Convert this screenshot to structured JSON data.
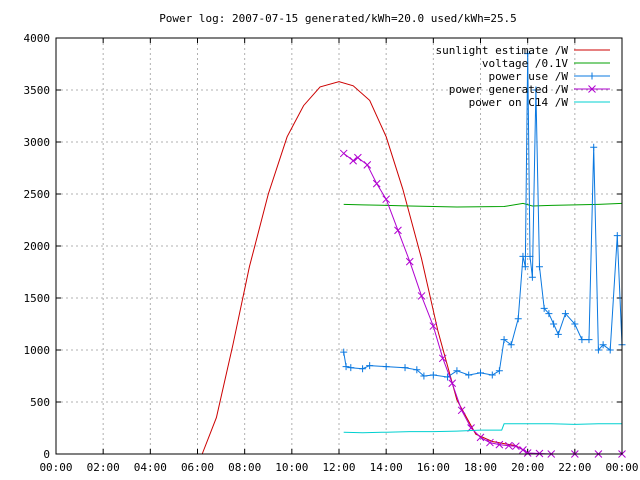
{
  "chart_data": {
    "type": "line",
    "title": "Power log: 2007-07-15 generated/kWh=20.0 used/kWh=25.5",
    "xlabel": "",
    "ylabel": "",
    "ylim": [
      0,
      4000
    ],
    "xlim": [
      0,
      24
    ],
    "grid": true,
    "legend_position": "top-right",
    "y_ticks": [
      "0",
      "500",
      "1000",
      "1500",
      "2000",
      "2500",
      "3000",
      "3500",
      "4000"
    ],
    "x_ticks": [
      "00:00",
      "02:00",
      "04:00",
      "06:00",
      "08:00",
      "10:00",
      "12:00",
      "14:00",
      "16:00",
      "18:00",
      "20:00",
      "22:00",
      "00:00"
    ],
    "series": [
      {
        "name": "sunlight estimate /W",
        "color": "#cc0000",
        "marker": "none",
        "x": [
          6.2,
          6.8,
          7.5,
          8.2,
          9.0,
          9.8,
          10.5,
          11.2,
          12.0,
          12.6,
          13.3,
          14.0,
          14.7,
          15.5,
          16.2,
          17.0,
          17.8,
          18.5,
          19.5,
          20.1
        ],
        "y": [
          0,
          350,
          1050,
          1800,
          2500,
          3050,
          3350,
          3530,
          3580,
          3540,
          3400,
          3050,
          2550,
          1880,
          1180,
          520,
          190,
          120,
          80,
          0
        ]
      },
      {
        "name": "voltage /0.1V",
        "color": "#00a000",
        "marker": "none",
        "x": [
          12.2,
          13.0,
          14.0,
          15.0,
          16.0,
          17.0,
          18.0,
          19.0,
          19.8,
          20.2,
          21.0,
          22.0,
          23.0,
          24.0
        ],
        "y": [
          2400,
          2395,
          2390,
          2385,
          2380,
          2375,
          2378,
          2380,
          2410,
          2385,
          2390,
          2395,
          2400,
          2410
        ]
      },
      {
        "name": "power use /W",
        "color": "#0a78e0",
        "marker": "plus",
        "x": [
          12.2,
          12.3,
          12.5,
          13.0,
          13.3,
          14.0,
          14.8,
          15.3,
          15.6,
          16.0,
          16.6,
          17.0,
          17.5,
          18.0,
          18.5,
          18.8,
          19.0,
          19.3,
          19.6,
          19.8,
          19.9,
          20.0,
          20.1,
          20.2,
          20.35,
          20.5,
          20.7,
          20.9,
          21.1,
          21.3,
          21.6,
          22.0,
          22.3,
          22.6,
          22.8,
          23.0,
          23.2,
          23.5,
          23.8,
          24.0
        ],
        "y": [
          980,
          840,
          830,
          820,
          850,
          840,
          830,
          810,
          750,
          760,
          740,
          800,
          760,
          780,
          760,
          800,
          1100,
          1050,
          1300,
          1900,
          1800,
          3850,
          1900,
          1700,
          3500,
          1800,
          1400,
          1350,
          1250,
          1150,
          1350,
          1250,
          1100,
          1100,
          2950,
          1000,
          1050,
          1000,
          2100,
          1050
        ]
      },
      {
        "name": "power generated /W",
        "color": "#b000d0",
        "marker": "cross",
        "x": [
          12.2,
          12.6,
          12.8,
          13.2,
          13.6,
          14.0,
          14.5,
          15.0,
          15.5,
          16.0,
          16.4,
          16.8,
          17.2,
          17.6,
          18.0,
          18.4,
          18.8,
          19.2,
          19.5,
          19.8,
          20.0,
          20.5,
          21.0,
          22.0,
          23.0,
          24.0
        ],
        "y": [
          2890,
          2820,
          2850,
          2780,
          2600,
          2450,
          2150,
          1850,
          1520,
          1230,
          920,
          680,
          420,
          250,
          160,
          110,
          90,
          80,
          75,
          40,
          10,
          5,
          0,
          0,
          0,
          0
        ]
      },
      {
        "name": "power on C14 /W",
        "color": "#00d0d0",
        "marker": "none",
        "x": [
          12.2,
          13.0,
          14.0,
          15.0,
          16.0,
          17.0,
          18.0,
          18.9,
          19.0,
          20.0,
          21.0,
          22.0,
          23.0,
          24.0
        ],
        "y": [
          210,
          205,
          210,
          215,
          215,
          220,
          230,
          230,
          290,
          290,
          290,
          285,
          290,
          290
        ]
      }
    ]
  }
}
